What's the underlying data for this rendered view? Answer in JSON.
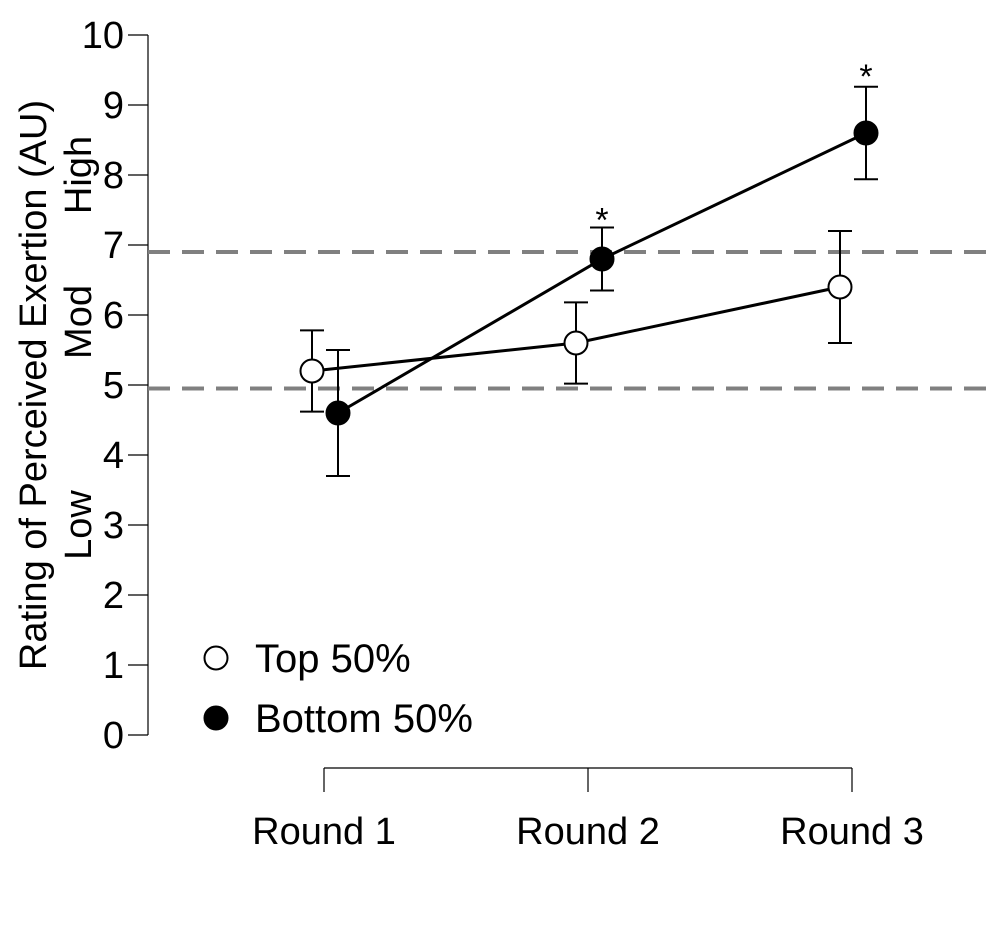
{
  "chart_data": {
    "type": "line",
    "ylabel": "Rating of Perceived Exertion (AU)",
    "ylim": [
      0,
      10
    ],
    "yticks": [
      "0",
      "1",
      "2",
      "3",
      "4",
      "5",
      "6",
      "7",
      "8",
      "9",
      "10"
    ],
    "categories": [
      "Round 1",
      "Round 2",
      "Round 3"
    ],
    "zones": [
      {
        "label": "High",
        "value": 8.0
      },
      {
        "label": "Mod",
        "value": 5.9
      },
      {
        "label": "Low",
        "value": 3.0
      }
    ],
    "reference_lines": [
      4.95,
      6.9
    ],
    "legend_position": "bottom-left",
    "series": [
      {
        "name": "Top 50%",
        "marker": "open-circle",
        "values": [
          5.2,
          5.6,
          6.4
        ],
        "error": [
          0.58,
          0.58,
          0.8
        ]
      },
      {
        "name": "Bottom 50%",
        "marker": "filled-circle",
        "values": [
          4.6,
          6.8,
          8.6
        ],
        "error": [
          0.9,
          0.45,
          0.66
        ]
      }
    ],
    "annotations": [
      {
        "text": "*",
        "category": "Round 2",
        "value": 7.45
      },
      {
        "text": "*",
        "category": "Round 3",
        "value": 9.5
      }
    ],
    "colors": {
      "line": "#000000",
      "reference": "#808080",
      "open_fill": "#ffffff"
    }
  }
}
